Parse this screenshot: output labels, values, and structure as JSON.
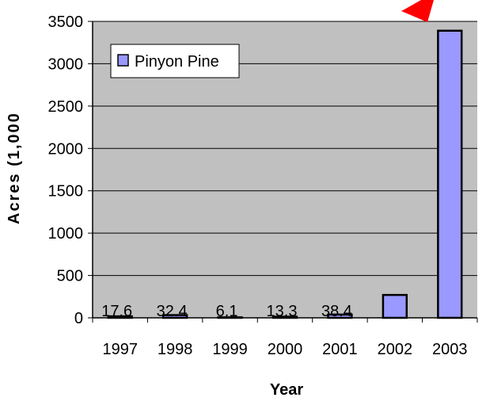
{
  "chart_data": {
    "type": "bar",
    "categories": [
      "1997",
      "1998",
      "1999",
      "2000",
      "2001",
      "2002",
      "2003"
    ],
    "series": [
      {
        "name": "Pinyon Pine",
        "values": [
          17.6,
          32.4,
          6.1,
          13.3,
          38.4,
          270,
          3390
        ],
        "data_labels": [
          "17.6",
          "32.4",
          "6.1",
          "13.3",
          "38.4",
          "",
          ""
        ]
      }
    ],
    "xlabel": "Year",
    "ylabel": "Acres (1,000",
    "ylim": [
      0,
      3500
    ],
    "yticks": [
      "0",
      "500",
      "1000",
      "1500",
      "2000",
      "2500",
      "3000",
      "3500"
    ],
    "grid": true,
    "legend_position": "top-left",
    "colors": {
      "bar_fill": "#9999ff",
      "plot_background": "#c0c0c0",
      "gridline": "#000000",
      "arrow": "#ff0000"
    }
  }
}
